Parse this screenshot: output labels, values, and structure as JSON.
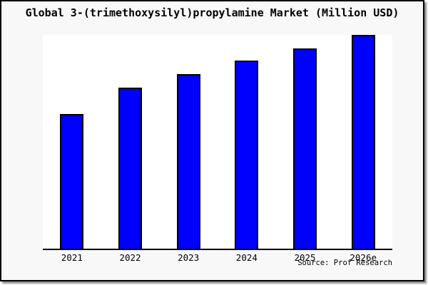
{
  "header": {
    "title": "Global 3-(trimethoxysilyl)propylamine Market (Million USD)"
  },
  "chart_data": {
    "type": "bar",
    "title": "Global 3-(trimethoxysilyl)propylamine Market (Million USD)",
    "categories": [
      "2021",
      "2022",
      "2023",
      "2024",
      "2025",
      "2026e"
    ],
    "values": [
      63,
      75.3,
      81.7,
      88,
      93.7,
      100
    ],
    "values_note": "y-axis has no tick labels; values are relative estimates from bar heights, normalized so 2026e = 100",
    "xlabel": "",
    "ylabel": "",
    "ylim": [
      0,
      100
    ],
    "grid": false,
    "y_axis_labels_visible": false,
    "legend": "none",
    "bar_color": "#0000fe",
    "bar_border_color": "#000000",
    "plot_background": "#ffffff",
    "canvas_background": "#f8f8f8",
    "source_note": "Source: Prof Research"
  },
  "footer": {
    "source": "Source: Prof Research"
  }
}
